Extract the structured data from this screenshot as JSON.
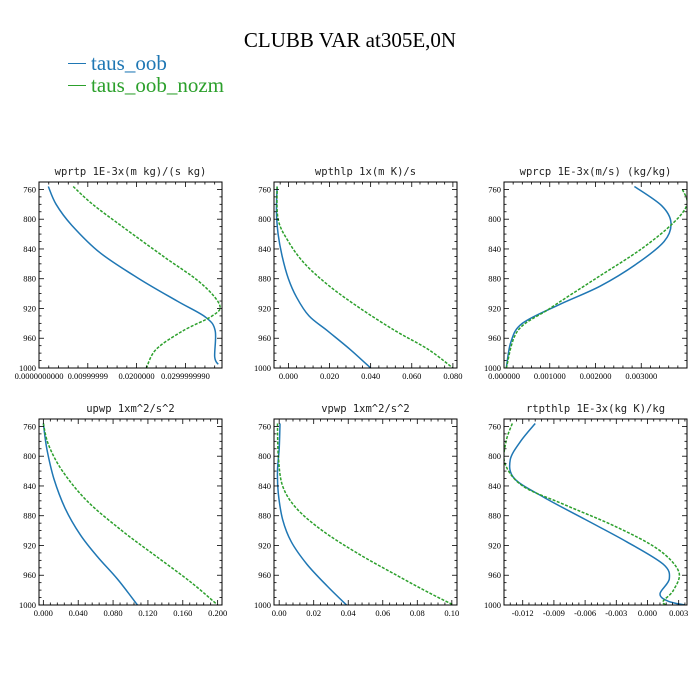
{
  "figure": {
    "title": "CLUBB VAR at305E,0N",
    "legend": [
      {
        "label": "taus_oob",
        "color": "#1f77b4"
      },
      {
        "label": "taus_oob_nozm",
        "color": "#2ca02c"
      }
    ]
  },
  "chart_data": [
    {
      "type": "line",
      "title": "wprtp  1E-3x(m kg)/(s kg)",
      "xlim": [
        0.0,
        0.0375
      ],
      "ylim": [
        1000,
        750
      ],
      "xticks": [
        0.0,
        0.00999999,
        0.02,
        0.0299999
      ],
      "xtick_labels": [
        "0.0000000000",
        "0.00999999",
        "0.0200000",
        "0.0299999990"
      ],
      "yticks": [
        760,
        800,
        840,
        880,
        920,
        960,
        1000
      ],
      "ytick_labels": [
        "760",
        "800",
        "840",
        "880",
        "920",
        "960",
        "1000"
      ],
      "series": [
        {
          "name": "taus_oob",
          "color": "#1f77b4",
          "dashed": false,
          "x": [
            0.0019,
            0.0035,
            0.0067,
            0.0125,
            0.0205,
            0.0283,
            0.0342,
            0.0361,
            0.036,
            0.0367
          ],
          "y": [
            756,
            780,
            808,
            845,
            880,
            910,
            932,
            950,
            985,
            995
          ]
        },
        {
          "name": "taus_oob_nozm",
          "color": "#2ca02c",
          "dashed": true,
          "x": [
            0.007,
            0.011,
            0.0175,
            0.0255,
            0.033,
            0.037,
            0.0355,
            0.0295,
            0.024,
            0.022
          ],
          "y": [
            756,
            780,
            812,
            850,
            885,
            915,
            930,
            950,
            975,
            1000
          ]
        }
      ]
    },
    {
      "type": "line",
      "title": "wpthlp  1x(m K)/s",
      "xlim": [
        -0.007,
        0.082
      ],
      "ylim": [
        1000,
        750
      ],
      "xticks": [
        0.0,
        0.02,
        0.04,
        0.06,
        0.08
      ],
      "xtick_labels": [
        "0.000",
        "0.020",
        "0.040",
        "0.060",
        "0.080"
      ],
      "yticks": [
        760,
        800,
        840,
        880,
        920,
        960,
        1000
      ],
      "ytick_labels": [
        "760",
        "800",
        "840",
        "880",
        "920",
        "960",
        "1000"
      ],
      "series": [
        {
          "name": "taus_oob",
          "color": "#1f77b4",
          "dashed": false,
          "x": [
            -0.0055,
            -0.0058,
            -0.005,
            -0.003,
            0.0,
            0.004,
            0.01,
            0.019,
            0.03,
            0.04
          ],
          "y": [
            756,
            790,
            820,
            850,
            880,
            905,
            930,
            950,
            975,
            1000
          ]
        },
        {
          "name": "taus_oob_nozm",
          "color": "#2ca02c",
          "dashed": true,
          "x": [
            -0.0055,
            -0.005,
            0.0,
            0.008,
            0.02,
            0.035,
            0.052,
            0.068,
            0.08
          ],
          "y": [
            756,
            800,
            830,
            860,
            890,
            920,
            950,
            975,
            1000
          ]
        }
      ]
    },
    {
      "type": "line",
      "title": "wprcp  1E-3x(m/s) (kg/kg)",
      "xlim": [
        0.0,
        0.004
      ],
      "ylim": [
        1000,
        750
      ],
      "xticks": [
        0.0,
        0.001,
        0.002,
        0.003
      ],
      "xtick_labels": [
        "0.000000",
        "0.001000",
        "0.002000",
        "0.003000"
      ],
      "yticks": [
        760,
        800,
        840,
        880,
        920,
        960,
        1000
      ],
      "ytick_labels": [
        "760",
        "800",
        "840",
        "880",
        "920",
        "960",
        "1000"
      ],
      "series": [
        {
          "name": "taus_oob",
          "color": "#1f77b4",
          "dashed": false,
          "x": [
            0.00285,
            0.00345,
            0.00365,
            0.0035,
            0.0029,
            0.0021,
            0.0012,
            0.0004,
            0.00015,
            5e-05
          ],
          "y": [
            756,
            782,
            805,
            830,
            860,
            890,
            915,
            940,
            965,
            1000
          ]
        },
        {
          "name": "taus_oob_nozm",
          "color": "#2ca02c",
          "dashed": true,
          "x": [
            0.0039,
            0.004,
            0.0037,
            0.003,
            0.002,
            0.001,
            0.0003,
            5e-05
          ],
          "y": [
            760,
            780,
            805,
            840,
            880,
            920,
            950,
            1000
          ]
        }
      ]
    },
    {
      "type": "line",
      "title": "upwp  1xm^2/s^2",
      "xlim": [
        -0.005,
        0.205
      ],
      "ylim": [
        1000,
        750
      ],
      "xticks": [
        0.0,
        0.04,
        0.08,
        0.12,
        0.16,
        0.2
      ],
      "xtick_labels": [
        "0.000",
        "0.040",
        "0.080",
        "0.120",
        "0.160",
        "0.200"
      ],
      "yticks": [
        760,
        800,
        840,
        880,
        920,
        960,
        1000
      ],
      "ytick_labels": [
        "760",
        "800",
        "840",
        "880",
        "920",
        "960",
        "1000"
      ],
      "series": [
        {
          "name": "taus_oob",
          "color": "#1f77b4",
          "dashed": false,
          "x": [
            0.0,
            0.004,
            0.012,
            0.025,
            0.042,
            0.062,
            0.085,
            0.108
          ],
          "y": [
            756,
            790,
            830,
            870,
            905,
            935,
            965,
            1000
          ]
        },
        {
          "name": "taus_oob_nozm",
          "color": "#2ca02c",
          "dashed": true,
          "x": [
            0.0,
            0.006,
            0.022,
            0.05,
            0.09,
            0.13,
            0.17,
            0.2
          ],
          "y": [
            756,
            785,
            820,
            860,
            900,
            935,
            970,
            1000
          ]
        }
      ]
    },
    {
      "type": "line",
      "title": "vpwp  1xm^2/s^2",
      "xlim": [
        -0.003,
        0.103
      ],
      "ylim": [
        1000,
        750
      ],
      "xticks": [
        0.0,
        0.02,
        0.04,
        0.06,
        0.08,
        0.1
      ],
      "xtick_labels": [
        "0.00",
        "0.02",
        "0.04",
        "0.06",
        "0.08",
        "0.10"
      ],
      "yticks": [
        760,
        800,
        840,
        880,
        920,
        960,
        1000
      ],
      "ytick_labels": [
        "760",
        "800",
        "840",
        "880",
        "920",
        "960",
        "1000"
      ],
      "series": [
        {
          "name": "taus_oob",
          "color": "#1f77b4",
          "dashed": false,
          "x": [
            0.0005,
            0.0,
            -0.001,
            -0.0005,
            0.002,
            0.007,
            0.016,
            0.028,
            0.039
          ],
          "y": [
            756,
            790,
            820,
            850,
            885,
            915,
            945,
            975,
            1000
          ]
        },
        {
          "name": "taus_oob_nozm",
          "color": "#2ca02c",
          "dashed": true,
          "x": [
            -0.001,
            -0.0005,
            0.002,
            0.01,
            0.025,
            0.045,
            0.068,
            0.088,
            0.101
          ],
          "y": [
            756,
            800,
            840,
            870,
            900,
            930,
            960,
            985,
            1000
          ]
        }
      ]
    },
    {
      "type": "line",
      "title": "rtpthlp  1E-3x(kg K)/kg",
      "xlim": [
        -0.0138,
        0.0038
      ],
      "ylim": [
        1000,
        750
      ],
      "xticks": [
        -0.012,
        -0.009,
        -0.006,
        -0.003,
        0.0,
        0.003
      ],
      "xtick_labels": [
        "-0.012",
        "-0.009",
        "-0.006",
        "-0.003",
        "0.000",
        "0.003"
      ],
      "yticks": [
        760,
        800,
        840,
        880,
        920,
        960,
        1000
      ],
      "ytick_labels": [
        "760",
        "800",
        "840",
        "880",
        "920",
        "960",
        "1000"
      ],
      "series": [
        {
          "name": "taus_oob",
          "color": "#1f77b4",
          "dashed": false,
          "x": [
            -0.0108,
            -0.0122,
            -0.0132,
            -0.0128,
            -0.01,
            -0.006,
            -0.002,
            0.0015,
            0.0021,
            0.0012,
            0.002,
            0.0036
          ],
          "y": [
            756,
            780,
            805,
            830,
            855,
            885,
            915,
            945,
            965,
            985,
            995,
            1000
          ]
        },
        {
          "name": "taus_oob_nozm",
          "color": "#2ca02c",
          "dashed": true,
          "x": [
            -0.013,
            -0.0136,
            -0.0137,
            -0.012,
            -0.008,
            -0.003,
            0.001,
            0.003,
            0.0025,
            0.0015,
            0.0018
          ],
          "y": [
            756,
            780,
            810,
            840,
            865,
            895,
            925,
            955,
            980,
            995,
            1000
          ]
        }
      ]
    }
  ]
}
